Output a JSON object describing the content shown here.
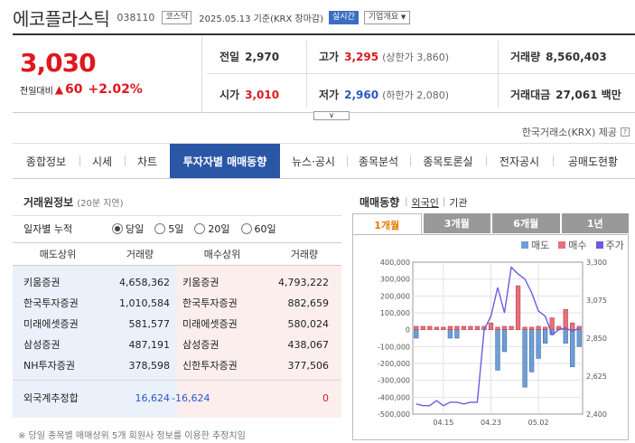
{
  "header": {
    "name": "에코플라스틱",
    "code": "038110",
    "market": "코스닥",
    "datetime": "2025.05.13  기준(KRX 장마감)",
    "live": "실시간",
    "info": "기업개요"
  },
  "quote": {
    "price": "3,030",
    "change_label": "전일대비",
    "change_val": "60",
    "change_pct": "+2.02%",
    "prev_label": "전일",
    "prev": "2,970",
    "high_label": "고가",
    "high": "3,295",
    "upper_limit": "(상한가 3,860)",
    "volume_label": "거래량",
    "volume": "8,560,403",
    "open_label": "시가",
    "open": "3,010",
    "low_label": "저가",
    "low": "2,960",
    "lower_limit": "(하한가 2,080)",
    "amount_label": "거래대금",
    "amount": "27,061 백만"
  },
  "provider": "한국거래소(KRX) 제공",
  "tabs": [
    "종합정보",
    "시세",
    "차트",
    "투자자별 매매동향",
    "뉴스·공시",
    "종목분석",
    "종목토론실",
    "전자공시",
    "공매도현황"
  ],
  "broker": {
    "title": "거래원정보",
    "delay": "(20분 지연)",
    "period_label": "일자별 누적",
    "periods": [
      "당일",
      "5일",
      "20일",
      "60일"
    ],
    "headers": [
      "매도상위",
      "거래량",
      "매수상위",
      "거래량"
    ],
    "rows": [
      {
        "sell": "키움증권",
        "sell_vol": "4,658,362",
        "buy": "키움증권",
        "buy_vol": "4,793,222"
      },
      {
        "sell": "한국투자증권",
        "sell_vol": "1,010,584",
        "buy": "한국투자증권",
        "buy_vol": "882,659"
      },
      {
        "sell": "미래에셋증권",
        "sell_vol": "581,577",
        "buy": "미래에셋증권",
        "buy_vol": "580,024"
      },
      {
        "sell": "삼성증권",
        "sell_vol": "487,191",
        "buy": "삼성증권",
        "buy_vol": "438,067"
      },
      {
        "sell": "NH투자증권",
        "sell_vol": "378,598",
        "buy": "신한투자증권",
        "buy_vol": "377,506"
      }
    ],
    "foreign": {
      "label": "외국계추정합",
      "sell": "16,624",
      "net": "-16,624",
      "buy": "0"
    },
    "footnote": "※ 당일 종목별 매매상위 5개 회원사 정보를 이용한 추정치임"
  },
  "trend": {
    "title": "매매동향",
    "filters": [
      "외국인",
      "기관"
    ],
    "periods": [
      "1개월",
      "3개월",
      "6개월",
      "1년"
    ],
    "legend": [
      "매도",
      "매수",
      "주가"
    ],
    "colors": {
      "sell": "#6f9ed6",
      "buy": "#e8707a",
      "price": "#6a5ce0"
    }
  },
  "chart_data": {
    "type": "bar",
    "yticks_left": [
      "400,000",
      "300,000",
      "200,000",
      "100,000",
      "0",
      "-100,000",
      "-200,000",
      "-300,000",
      "-400,000",
      "-500,000"
    ],
    "yticks_right": [
      "3,300",
      "3,075",
      "2,850",
      "2,625",
      "2,400"
    ],
    "xticks": [
      "04.15",
      "04.23",
      "05.02"
    ],
    "ylim": [
      -500000,
      400000
    ],
    "ylim_right": [
      2400,
      3300
    ],
    "series": [
      {
        "name": "매도",
        "values": [
          -50000,
          0,
          0,
          0,
          0,
          -50000,
          -50000,
          0,
          0,
          0,
          0,
          0,
          -240000,
          -130000,
          0,
          0,
          -340000,
          -250000,
          -170000,
          -80000,
          -30000,
          0,
          -80000,
          -220000,
          -100000
        ]
      },
      {
        "name": "매수",
        "values": [
          20000,
          20000,
          20000,
          15000,
          15000,
          20000,
          20000,
          20000,
          20000,
          20000,
          20000,
          40000,
          15000,
          20000,
          20000,
          260000,
          15000,
          15000,
          20000,
          15000,
          70000,
          20000,
          120000,
          40000,
          20000
        ]
      },
      {
        "name": "주가",
        "values": [
          2460,
          2450,
          2450,
          2480,
          2450,
          2470,
          2470,
          2460,
          2470,
          2470,
          2900,
          2980,
          3150,
          3000,
          3270,
          3230,
          3200,
          3120,
          3010,
          2980,
          2870,
          2900,
          2910,
          2890,
          2910
        ]
      }
    ]
  }
}
